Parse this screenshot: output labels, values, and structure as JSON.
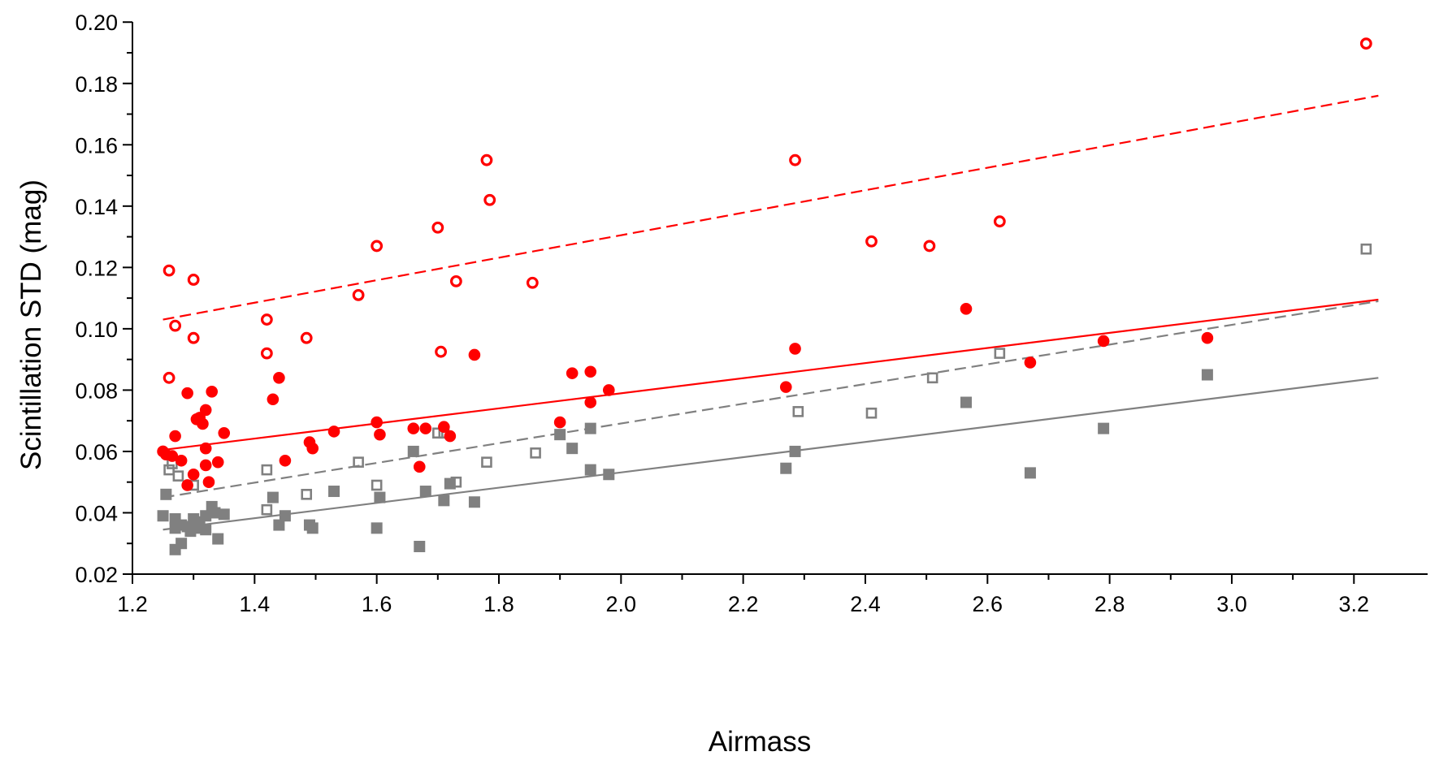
{
  "chart_data": {
    "type": "scatter",
    "title": "",
    "xlabel": "Airmass",
    "ylabel": "Scintillation STD (mag)",
    "xlim": [
      1.2,
      3.25
    ],
    "ylim": [
      0.02,
      0.2
    ],
    "xticks": [
      1.2,
      1.4,
      1.6,
      1.8,
      2.0,
      2.2,
      2.4,
      2.6,
      2.8,
      3.0,
      3.2
    ],
    "xtick_labels": [
      "1.2",
      "1.4",
      "1.6",
      "1.8",
      "2.0",
      "2.2",
      "2.4",
      "2.6",
      "2.8",
      "3.0",
      "3.2"
    ],
    "yticks": [
      0.02,
      0.04,
      0.06,
      0.08,
      0.1,
      0.12,
      0.14,
      0.16,
      0.18,
      0.2
    ],
    "ytick_labels": [
      "0.02",
      "0.04",
      "0.06",
      "0.08",
      "0.10",
      "0.12",
      "0.14",
      "0.16",
      "0.18",
      "0.20"
    ],
    "grid": false,
    "legend": "none",
    "colors": {
      "red": "#ff0000",
      "gray": "#808080"
    },
    "series": [
      {
        "name": "red-open-circles",
        "marker": "open-circle",
        "color": "#ff0000",
        "points": [
          [
            1.26,
            0.119
          ],
          [
            1.3,
            0.116
          ],
          [
            1.27,
            0.101
          ],
          [
            1.3,
            0.097
          ],
          [
            1.26,
            0.084
          ],
          [
            1.42,
            0.103
          ],
          [
            1.42,
            0.092
          ],
          [
            1.485,
            0.097
          ],
          [
            1.57,
            0.111
          ],
          [
            1.6,
            0.127
          ],
          [
            1.7,
            0.133
          ],
          [
            1.73,
            0.1155
          ],
          [
            1.705,
            0.0925
          ],
          [
            1.78,
            0.155
          ],
          [
            1.785,
            0.142
          ],
          [
            1.855,
            0.115
          ],
          [
            2.285,
            0.155
          ],
          [
            2.41,
            0.1285
          ],
          [
            2.505,
            0.127
          ],
          [
            2.62,
            0.135
          ],
          [
            3.22,
            0.193
          ]
        ]
      },
      {
        "name": "red-filled-circles",
        "marker": "filled-circle",
        "color": "#ff0000",
        "points": [
          [
            1.25,
            0.06
          ],
          [
            1.255,
            0.059
          ],
          [
            1.265,
            0.0585
          ],
          [
            1.27,
            0.065
          ],
          [
            1.28,
            0.057
          ],
          [
            1.29,
            0.079
          ],
          [
            1.29,
            0.049
          ],
          [
            1.3,
            0.0525
          ],
          [
            1.305,
            0.0705
          ],
          [
            1.31,
            0.071
          ],
          [
            1.315,
            0.069
          ],
          [
            1.32,
            0.0735
          ],
          [
            1.32,
            0.061
          ],
          [
            1.32,
            0.0555
          ],
          [
            1.325,
            0.05
          ],
          [
            1.33,
            0.0795
          ],
          [
            1.34,
            0.0565
          ],
          [
            1.35,
            0.066
          ],
          [
            1.43,
            0.077
          ],
          [
            1.44,
            0.084
          ],
          [
            1.45,
            0.057
          ],
          [
            1.49,
            0.063
          ],
          [
            1.495,
            0.061
          ],
          [
            1.53,
            0.0665
          ],
          [
            1.6,
            0.0695
          ],
          [
            1.605,
            0.0655
          ],
          [
            1.66,
            0.0675
          ],
          [
            1.67,
            0.055
          ],
          [
            1.68,
            0.0675
          ],
          [
            1.71,
            0.068
          ],
          [
            1.72,
            0.065
          ],
          [
            1.76,
            0.0915
          ],
          [
            1.9,
            0.0695
          ],
          [
            1.92,
            0.0855
          ],
          [
            1.95,
            0.086
          ],
          [
            1.95,
            0.076
          ],
          [
            1.98,
            0.08
          ],
          [
            2.27,
            0.081
          ],
          [
            2.285,
            0.0935
          ],
          [
            2.565,
            0.1065
          ],
          [
            2.67,
            0.089
          ],
          [
            2.79,
            0.096
          ],
          [
            2.96,
            0.097
          ]
        ]
      },
      {
        "name": "gray-open-squares",
        "marker": "open-square",
        "color": "#808080",
        "points": [
          [
            1.26,
            0.054
          ],
          [
            1.265,
            0.056
          ],
          [
            1.275,
            0.052
          ],
          [
            1.3,
            0.049
          ],
          [
            1.42,
            0.054
          ],
          [
            1.42,
            0.041
          ],
          [
            1.485,
            0.046
          ],
          [
            1.57,
            0.0565
          ],
          [
            1.6,
            0.049
          ],
          [
            1.7,
            0.066
          ],
          [
            1.71,
            0.066
          ],
          [
            1.73,
            0.05
          ],
          [
            1.78,
            0.0565
          ],
          [
            1.86,
            0.0595
          ],
          [
            2.29,
            0.073
          ],
          [
            2.41,
            0.0725
          ],
          [
            2.51,
            0.084
          ],
          [
            2.62,
            0.092
          ],
          [
            3.22,
            0.126
          ]
        ]
      },
      {
        "name": "gray-filled-squares",
        "marker": "filled-square",
        "color": "#808080",
        "points": [
          [
            1.25,
            0.039
          ],
          [
            1.255,
            0.046
          ],
          [
            1.27,
            0.038
          ],
          [
            1.27,
            0.035
          ],
          [
            1.27,
            0.028
          ],
          [
            1.28,
            0.036
          ],
          [
            1.28,
            0.03
          ],
          [
            1.29,
            0.0355
          ],
          [
            1.295,
            0.034
          ],
          [
            1.3,
            0.038
          ],
          [
            1.305,
            0.035
          ],
          [
            1.31,
            0.037
          ],
          [
            1.32,
            0.039
          ],
          [
            1.32,
            0.0345
          ],
          [
            1.33,
            0.042
          ],
          [
            1.335,
            0.04
          ],
          [
            1.34,
            0.0315
          ],
          [
            1.35,
            0.0395
          ],
          [
            1.43,
            0.045
          ],
          [
            1.44,
            0.036
          ],
          [
            1.45,
            0.039
          ],
          [
            1.49,
            0.036
          ],
          [
            1.495,
            0.035
          ],
          [
            1.53,
            0.047
          ],
          [
            1.6,
            0.035
          ],
          [
            1.605,
            0.045
          ],
          [
            1.66,
            0.06
          ],
          [
            1.67,
            0.029
          ],
          [
            1.68,
            0.047
          ],
          [
            1.71,
            0.044
          ],
          [
            1.72,
            0.0495
          ],
          [
            1.76,
            0.0435
          ],
          [
            1.9,
            0.0655
          ],
          [
            1.92,
            0.061
          ],
          [
            1.95,
            0.0675
          ],
          [
            1.95,
            0.054
          ],
          [
            1.98,
            0.0525
          ],
          [
            2.27,
            0.0545
          ],
          [
            2.285,
            0.06
          ],
          [
            2.565,
            0.076
          ],
          [
            2.67,
            0.053
          ],
          [
            2.79,
            0.0675
          ],
          [
            2.96,
            0.085
          ]
        ]
      }
    ],
    "fit_lines": [
      {
        "name": "red-dashed-fit",
        "color": "#ff0000",
        "style": "dashed",
        "x": [
          1.25,
          3.24
        ],
        "y": [
          0.103,
          0.176
        ]
      },
      {
        "name": "red-solid-fit",
        "color": "#ff0000",
        "style": "solid",
        "x": [
          1.25,
          3.24
        ],
        "y": [
          0.0605,
          0.1095
        ]
      },
      {
        "name": "gray-dashed-fit",
        "color": "#808080",
        "style": "dashed",
        "x": [
          1.25,
          3.24
        ],
        "y": [
          0.045,
          0.109
        ]
      },
      {
        "name": "gray-solid-fit",
        "color": "#808080",
        "style": "solid",
        "x": [
          1.25,
          3.24
        ],
        "y": [
          0.0345,
          0.084
        ]
      }
    ]
  }
}
